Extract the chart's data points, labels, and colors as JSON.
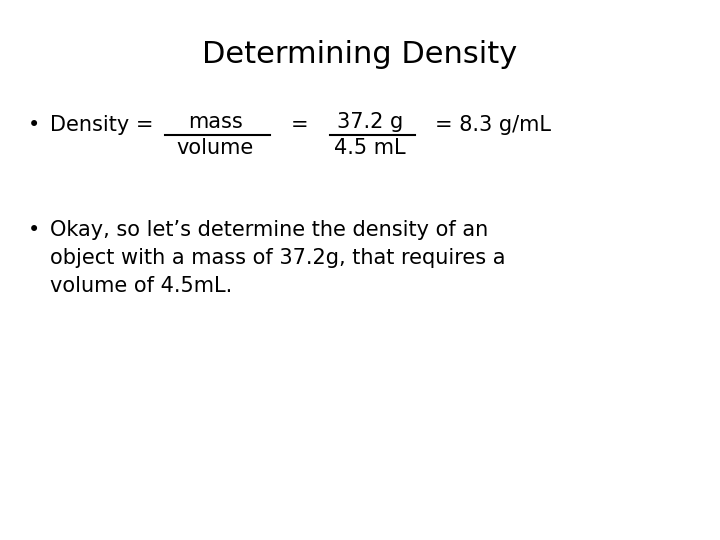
{
  "title": "Determining Density",
  "title_fontsize": 22,
  "background_color": "#ffffff",
  "text_color": "#000000",
  "font_family": "DejaVu Sans",
  "body_fontsize": 15,
  "bullet1_density": "Density = ",
  "bullet1_num1": "mass",
  "bullet1_den1": "volume",
  "bullet1_eq": "=",
  "bullet1_num2": "37.2 g",
  "bullet1_den2": "4.5 mL",
  "bullet1_result": "= 8.3 g/mL",
  "bullet2_line1": "Okay, so let’s determine the density of an",
  "bullet2_line2": "object with a mass of 37.2g, that requires a",
  "bullet2_line3": "volume of 4.5mL."
}
